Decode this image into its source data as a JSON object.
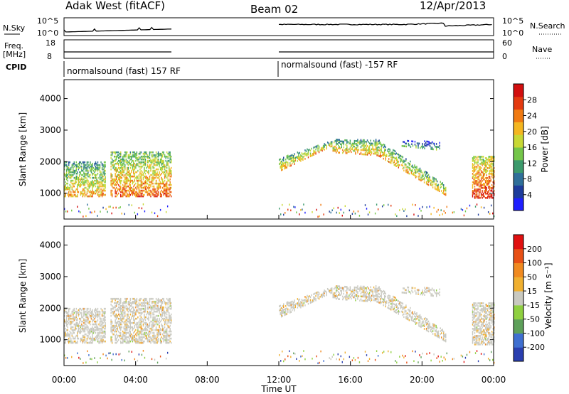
{
  "header": {
    "station": "Adak West (fitACF)",
    "beam": "Beam 02",
    "date": "12/Apr/2013"
  },
  "colors": {
    "power_scale": [
      "#1f1fff",
      "#1e3c9c",
      "#2f6f99",
      "#3c9a6c",
      "#74c64a",
      "#c8d835",
      "#f4b620",
      "#f07a12",
      "#e43a10",
      "#d20f0f"
    ],
    "velocity_scale": [
      "#2a3fb0",
      "#3f6fd0",
      "#5ea05a",
      "#8fd040",
      "#c9c9c0",
      "#f0b030",
      "#f08a20",
      "#e85015",
      "#e01010"
    ]
  },
  "chart_data": [
    {
      "type": "line",
      "panel": "nsky-nsearch",
      "left_label": "N.Sky",
      "right_label": "N.Search",
      "left_ticks": [
        "10^5",
        "10^0"
      ],
      "right_ticks": [
        "10^5",
        "10^0"
      ],
      "gap_hours": [
        6,
        12
      ]
    },
    {
      "type": "line",
      "panel": "freq-nave",
      "left_label_lines": [
        "Freq.",
        "[MHz]"
      ],
      "right_label": "Nave",
      "left_ticks": [
        "18",
        "8"
      ],
      "right_ticks": [
        "60",
        "0"
      ],
      "gap_hours": [
        6,
        12
      ]
    },
    {
      "type": "table",
      "panel": "cpid",
      "label": "CPID",
      "segments": [
        {
          "start_hour": 0,
          "text": "normalsound (fast) 157 RF"
        },
        {
          "start_hour": 12,
          "text": "normalsound (fast) -157 RF"
        }
      ]
    },
    {
      "type": "heatmap",
      "panel": "power",
      "ylabel": "Slant Range [km]",
      "yticks": [
        "1000",
        "2000",
        "3000",
        "4000"
      ],
      "ylim": [
        180,
        4600
      ],
      "colorbar_label": "Power [dB]",
      "colorbar_ticks": [
        "4",
        "8",
        "12",
        "16",
        "20",
        "24",
        "28"
      ],
      "colorbar_range": [
        0,
        30
      ]
    },
    {
      "type": "heatmap",
      "panel": "velocity",
      "ylabel": "Slant Range [km]",
      "yticks": [
        "1000",
        "2000",
        "3000",
        "4000"
      ],
      "ylim": [
        180,
        4600
      ],
      "colorbar_label": "Velocity [m s⁻¹]",
      "colorbar_ticks": [
        "200",
        "100",
        "50",
        "15",
        "-15",
        "-50",
        "-100",
        "-200"
      ],
      "xticks": [
        "00:00",
        "04:00",
        "08:00",
        "12:00",
        "16:00",
        "20:00",
        "00:00"
      ],
      "xlim_hours": [
        0,
        24
      ],
      "xlabel": "Time UT"
    }
  ]
}
